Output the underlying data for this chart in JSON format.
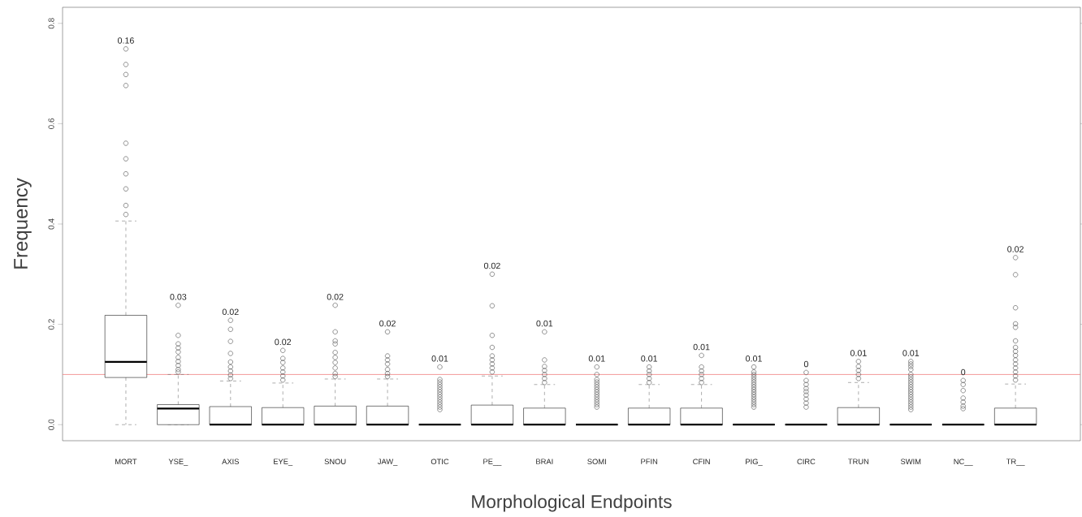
{
  "chart_data": {
    "type": "box",
    "xlabel": "Morphological Endpoints",
    "ylabel": "Frequency",
    "categories": [
      "MORT",
      "YSE_",
      "AXIS",
      "EYE_",
      "SNOU",
      "JAW_",
      "OTIC",
      "PE__",
      "BRAI",
      "SOMI",
      "PFIN",
      "CFIN",
      "PIG_",
      "CIRC",
      "TRUN",
      "SWIM",
      "NC__",
      "TR__"
    ],
    "boxes": [
      {
        "low": 0,
        "q1": 0.094,
        "median": 0.125,
        "q3": 0.218,
        "high": 0.406,
        "outliers": [
          0.749,
          0.718,
          0.698,
          0.676,
          0.561,
          0.53,
          0.5,
          0.47,
          0.437,
          0.419
        ]
      },
      {
        "low": 0,
        "q1": 0,
        "median": 0.032,
        "q3": 0.04,
        "high": 0.1,
        "outliers": [
          0.238,
          0.178,
          0.161,
          0.153,
          0.145,
          0.134,
          0.126,
          0.118,
          0.11,
          0.105
        ]
      },
      {
        "low": 0,
        "q1": 0,
        "median": 0,
        "q3": 0.036,
        "high": 0.087,
        "outliers": [
          0.208,
          0.19,
          0.166,
          0.142,
          0.125,
          0.115,
          0.107,
          0.099,
          0.092
        ]
      },
      {
        "low": 0,
        "q1": 0,
        "median": 0,
        "q3": 0.034,
        "high": 0.083,
        "outliers": [
          0.148,
          0.132,
          0.124,
          0.113,
          0.105,
          0.097,
          0.089
        ]
      },
      {
        "low": 0,
        "q1": 0,
        "median": 0,
        "q3": 0.037,
        "high": 0.091,
        "outliers": [
          0.238,
          0.185,
          0.167,
          0.161,
          0.144,
          0.134,
          0.124,
          0.113,
          0.102,
          0.096
        ]
      },
      {
        "low": 0,
        "q1": 0,
        "median": 0,
        "q3": 0.037,
        "high": 0.091,
        "outliers": [
          0.185,
          0.137,
          0.129,
          0.121,
          0.11,
          0.102,
          0.096
        ]
      },
      {
        "low": 0,
        "q1": 0,
        "median": 0,
        "q3": 0,
        "high": 0,
        "outliers": [
          0.115,
          0.09,
          0.085,
          0.08,
          0.075,
          0.07,
          0.065,
          0.06,
          0.055,
          0.05,
          0.045,
          0.04,
          0.035,
          0.03
        ]
      },
      {
        "low": 0,
        "q1": 0,
        "median": 0,
        "q3": 0.039,
        "high": 0.097,
        "outliers": [
          0.3,
          0.237,
          0.178,
          0.154,
          0.137,
          0.129,
          0.121,
          0.113,
          0.105
        ]
      },
      {
        "low": 0,
        "q1": 0,
        "median": 0,
        "q3": 0.033,
        "high": 0.08,
        "outliers": [
          0.185,
          0.129,
          0.116,
          0.108,
          0.1,
          0.092,
          0.084
        ]
      },
      {
        "low": 0,
        "q1": 0,
        "median": 0,
        "q3": 0,
        "high": 0,
        "outliers": [
          0.115,
          0.1,
          0.09,
          0.085,
          0.08,
          0.075,
          0.07,
          0.065,
          0.06,
          0.055,
          0.05,
          0.045,
          0.04,
          0.035
        ]
      },
      {
        "low": 0,
        "q1": 0,
        "median": 0,
        "q3": 0.033,
        "high": 0.08,
        "outliers": [
          0.115,
          0.107,
          0.1,
          0.092,
          0.084
        ]
      },
      {
        "low": 0,
        "q1": 0,
        "median": 0,
        "q3": 0.033,
        "high": 0.08,
        "outliers": [
          0.138,
          0.115,
          0.107,
          0.1,
          0.092,
          0.084
        ]
      },
      {
        "low": 0,
        "q1": 0,
        "median": 0,
        "q3": 0,
        "high": 0,
        "outliers": [
          0.115,
          0.105,
          0.1,
          0.095,
          0.09,
          0.085,
          0.08,
          0.075,
          0.07,
          0.065,
          0.06,
          0.055,
          0.05,
          0.045,
          0.04,
          0.035
        ]
      },
      {
        "low": 0,
        "q1": 0,
        "median": 0,
        "q3": 0,
        "high": 0,
        "outliers": [
          0.104,
          0.088,
          0.08,
          0.072,
          0.066,
          0.059,
          0.051,
          0.043,
          0.035
        ]
      },
      {
        "low": 0,
        "q1": 0,
        "median": 0,
        "q3": 0.034,
        "high": 0.084,
        "outliers": [
          0.126,
          0.116,
          0.108,
          0.1,
          0.092
        ]
      },
      {
        "low": 0,
        "q1": 0,
        "median": 0,
        "q3": 0,
        "high": 0,
        "outliers": [
          0.126,
          0.121,
          0.116,
          0.11,
          0.1,
          0.095,
          0.09,
          0.085,
          0.08,
          0.075,
          0.07,
          0.065,
          0.06,
          0.055,
          0.05,
          0.045,
          0.04,
          0.035,
          0.03
        ]
      },
      {
        "low": 0,
        "q1": 0,
        "median": 0,
        "q3": 0,
        "high": 0,
        "outliers": [
          0.088,
          0.08,
          0.068,
          0.053,
          0.045,
          0.037,
          0.032
        ]
      },
      {
        "low": 0,
        "q1": 0,
        "median": 0,
        "q3": 0.033,
        "high": 0.081,
        "outliers": [
          0.333,
          0.299,
          0.233,
          0.201,
          0.194,
          0.167,
          0.154,
          0.146,
          0.138,
          0.129,
          0.121,
          0.113,
          0.105,
          0.097,
          0.089
        ]
      }
    ],
    "annotations": [
      "0.16",
      "0.03",
      "0.02",
      "0.02",
      "0.02",
      "0.02",
      "0.01",
      "0.02",
      "0.01",
      "0.01",
      "0.01",
      "0.01",
      "0.01",
      "0",
      "0.01",
      "0.01",
      "0",
      "0.02"
    ],
    "ref_lines": [
      {
        "axis": "y",
        "value": 0.1,
        "color": "#f08080"
      }
    ],
    "ylim": [
      -0.032,
      0.832
    ],
    "yticks": [
      {
        "value": 0,
        "label": "0.0"
      },
      0.2,
      0.4,
      0.6,
      0.8
    ],
    "marker": "circle",
    "grid": false
  }
}
